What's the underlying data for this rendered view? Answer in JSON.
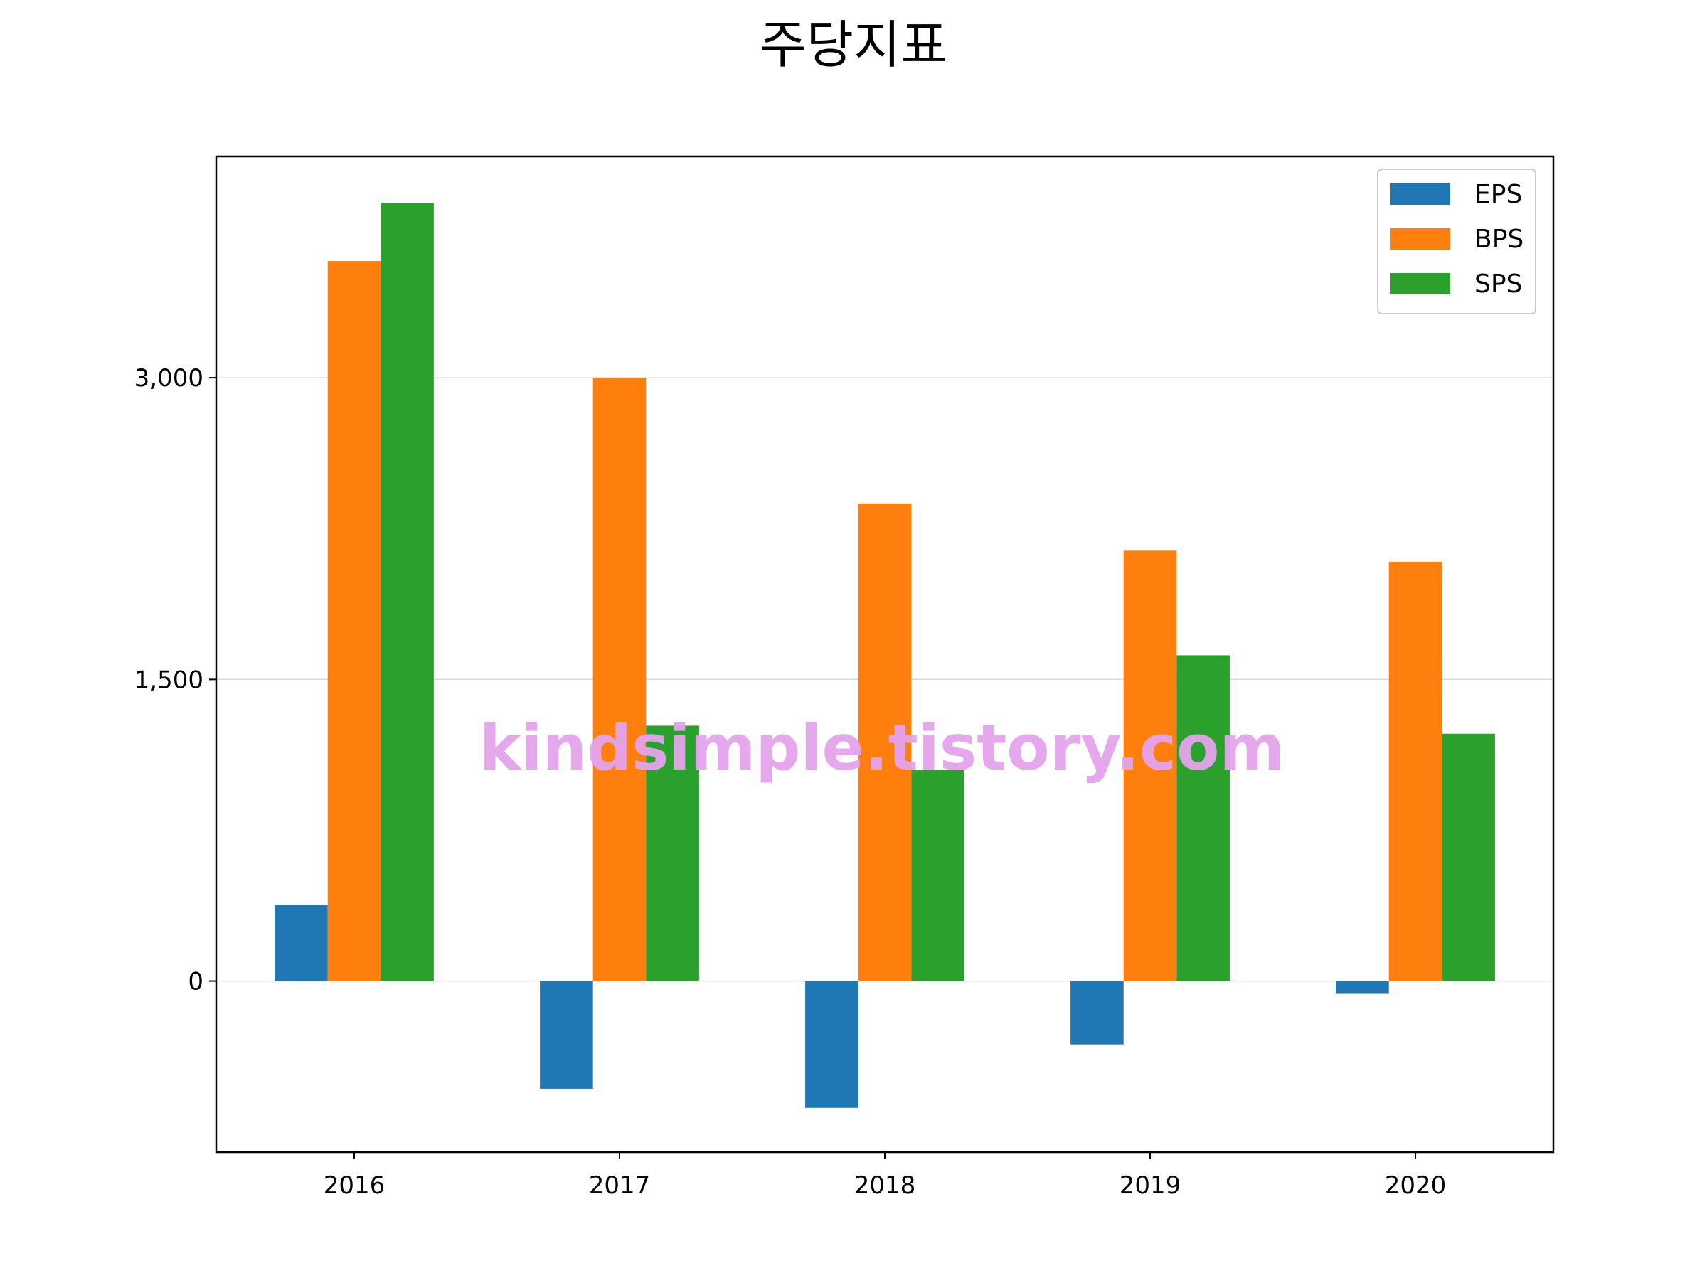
{
  "chart_data": {
    "type": "bar",
    "title": "주당지표",
    "xlabel": "",
    "ylabel": "",
    "categories": [
      "2016",
      "2017",
      "2018",
      "2019",
      "2020"
    ],
    "series": [
      {
        "name": "EPS",
        "color": "#1f77b4",
        "values": [
          380,
          -535,
          -630,
          -315,
          -60
        ]
      },
      {
        "name": "BPS",
        "color": "#ff7f0e",
        "values": [
          3580,
          3000,
          2375,
          2140,
          2085
        ]
      },
      {
        "name": "SPS",
        "color": "#2ca02c",
        "values": [
          3870,
          1270,
          1050,
          1620,
          1230
        ]
      }
    ],
    "ylim": [
      -850,
      4100
    ],
    "yticks": [
      0,
      1500,
      3000
    ],
    "ytick_labels": [
      "0",
      "1,500",
      "3,000"
    ],
    "grid": "y",
    "legend_position": "top-right"
  },
  "watermark": "kindsimple.tistory.com",
  "colors": {
    "grid": "#d9d9d9",
    "axis": "#000000",
    "watermark": "#e4a3ec"
  }
}
